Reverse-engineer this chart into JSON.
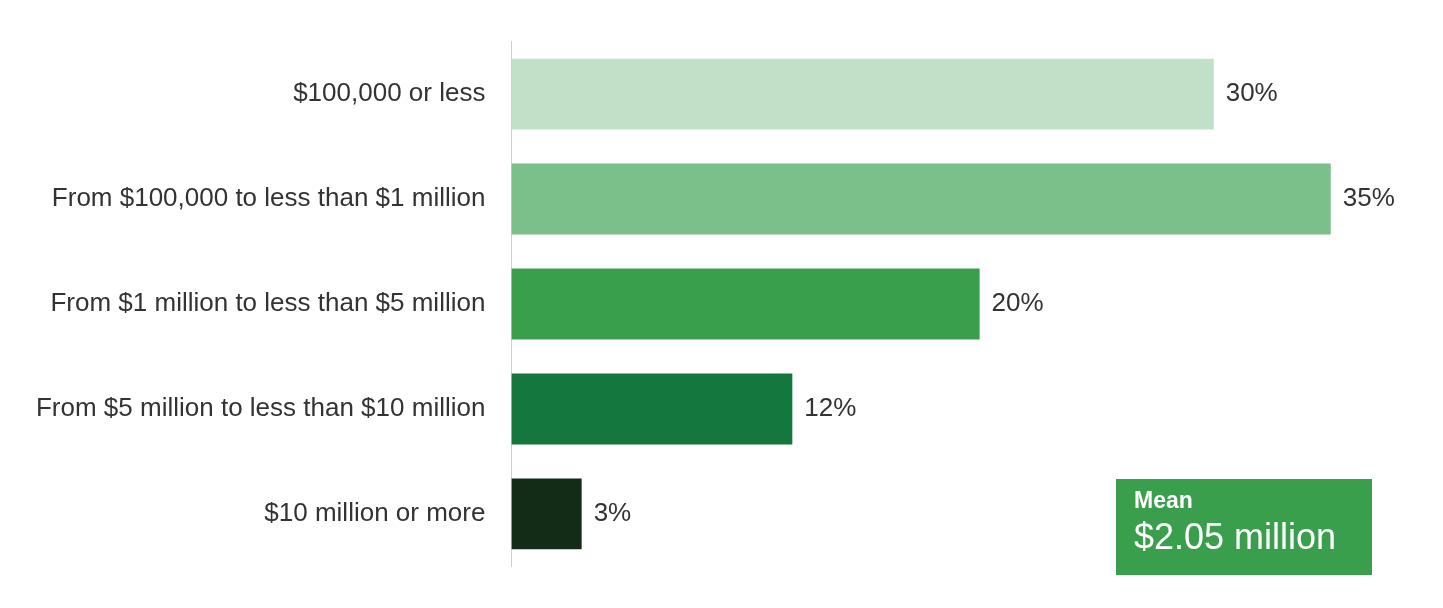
{
  "chart_data": {
    "type": "bar",
    "orientation": "horizontal",
    "categories": [
      "$100,000 or less",
      "From $100,000 to less than $1 million",
      "From $1 million to less than $5 million",
      "From $5 million to less than $10 million",
      "$10 million or more"
    ],
    "values": [
      30,
      35,
      20,
      12,
      3
    ],
    "colors": [
      "#c1e0c8",
      "#7bc08a",
      "#3a9f4c",
      "#14773d",
      "#122c18"
    ],
    "data_labels": true,
    "value_labels": [
      "30%",
      "35%",
      "20%",
      "12%",
      "3%"
    ],
    "grid": false,
    "legend": false,
    "annotations": [
      "Mean",
      "$2.05 million"
    ]
  }
}
